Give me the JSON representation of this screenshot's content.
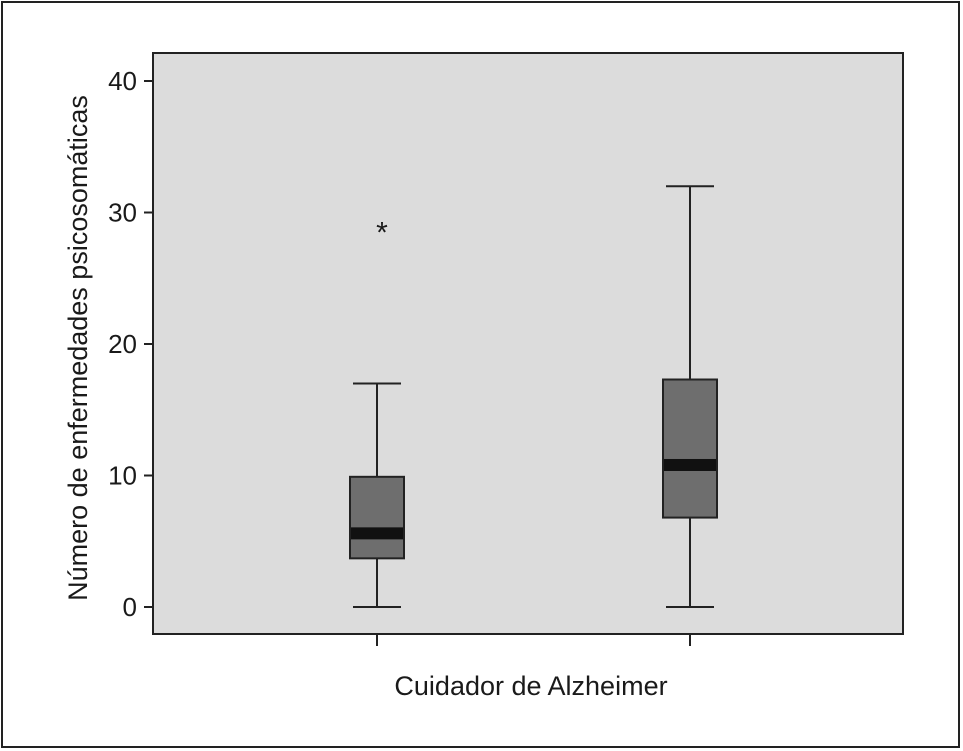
{
  "chart_data": {
    "type": "boxplot",
    "xlabel": "Cuidador de Alzheimer",
    "ylabel": "Número de enfermedades psicosomáticas",
    "ylim": [
      -2,
      42
    ],
    "yticks": [
      0,
      10,
      20,
      30,
      40
    ],
    "ytick_labels": [
      "0",
      "10",
      "20",
      "30",
      "40"
    ],
    "grid": false,
    "background_color": "#dcdcdc",
    "box_color": "#6e6e6e",
    "median_color": "#111111",
    "boxes": [
      {
        "whisker_low": 0,
        "q1": 3.7,
        "median": 5.6,
        "q3": 9.9,
        "whisker_high": 17,
        "outliers": [
          28.8
        ]
      },
      {
        "whisker_low": 0,
        "q1": 6.8,
        "median": 10.8,
        "q3": 17.3,
        "whisker_high": 32,
        "outliers": []
      }
    ]
  }
}
